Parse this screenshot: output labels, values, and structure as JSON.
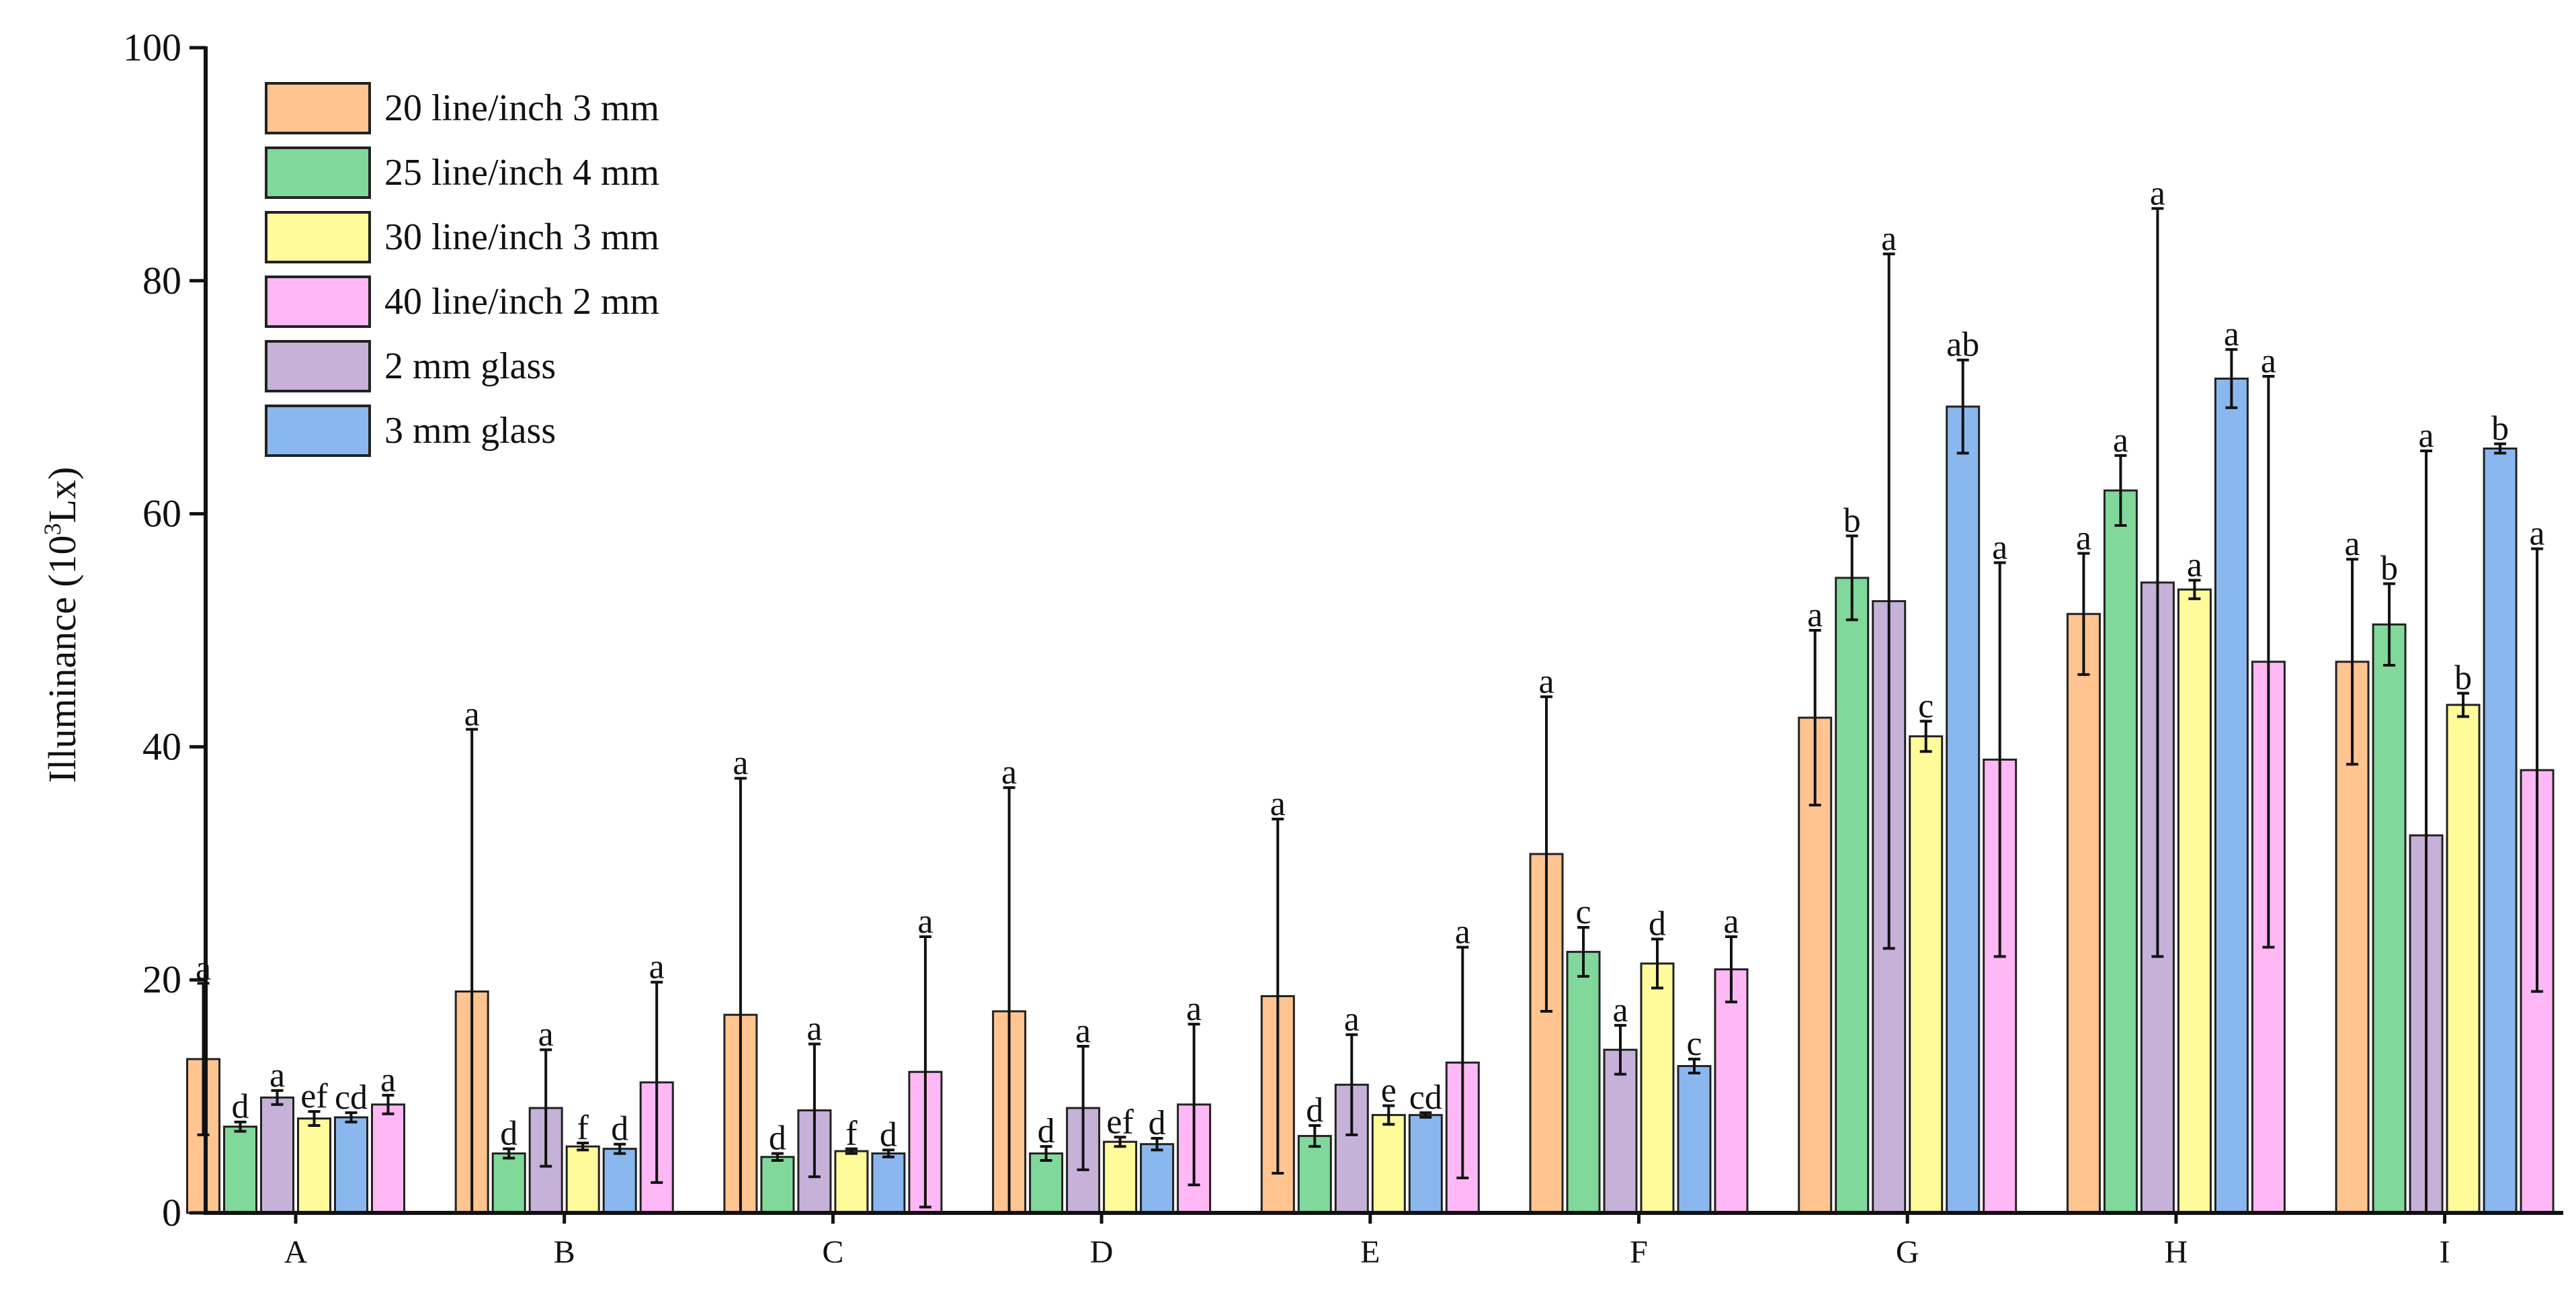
{
  "chart_data": {
    "type": "bar",
    "ylabel": "Illuminance (10",
    "ylabel_sup": "3",
    "ylabel_end": "Lx)",
    "ylim": [
      0,
      100
    ],
    "yticks": [
      0,
      20,
      40,
      60,
      80,
      100
    ],
    "grid": false,
    "legend_placement": "top-left",
    "categories": [
      "A",
      "B",
      "C",
      "D",
      "E",
      "F",
      "G",
      "H",
      "I"
    ],
    "legend": [
      {
        "name": "20 line/inch 3 mm",
        "color": "#FFC48F"
      },
      {
        "name": "25 line/inch 4 mm",
        "color": "#80D99A"
      },
      {
        "name": "30 line/inch 3 mm",
        "color": "#FFFA9A"
      },
      {
        "name": "40 line/inch 2 mm",
        "color": "#FFB8F5"
      },
      {
        "name": "2 mm glass",
        "color": "#C6B2D8"
      },
      {
        "name": "3 mm glass",
        "color": "#8AB8EE"
      }
    ],
    "bar_order": [
      "20 line/inch 3 mm",
      "25 line/inch 4 mm",
      "2 mm glass",
      "30 line/inch 3 mm",
      "3 mm glass",
      "40 line/inch 2 mm"
    ],
    "series": [
      {
        "name": "20 line/inch 3 mm",
        "color": "#FFC48F",
        "values": [
          13.2,
          19.0,
          17.0,
          17.3,
          18.6,
          30.8,
          42.5,
          51.4,
          47.3
        ],
        "errors": [
          6.5,
          22.5,
          20.3,
          19.2,
          15.2,
          13.5,
          7.5,
          5.2,
          8.8
        ],
        "letters": [
          "a",
          "a",
          "a",
          "a",
          "a",
          "a",
          "a",
          "a",
          "a"
        ]
      },
      {
        "name": "25 line/inch 4 mm",
        "color": "#80D99A",
        "values": [
          7.4,
          5.1,
          4.8,
          5.1,
          6.6,
          22.4,
          54.5,
          62.0,
          50.5
        ],
        "errors": [
          0.4,
          0.4,
          0.3,
          0.6,
          0.9,
          2.1,
          3.6,
          3.0,
          3.5
        ],
        "letters": [
          "d",
          "d",
          "d",
          "d",
          "d",
          "c",
          "b",
          "a",
          "b"
        ]
      },
      {
        "name": "2 mm glass",
        "color": "#C6B2D8",
        "values": [
          9.9,
          9.0,
          8.8,
          9.0,
          11.0,
          14.0,
          52.5,
          54.1,
          32.4
        ],
        "errors": [
          0.6,
          5.0,
          5.7,
          5.3,
          4.3,
          2.1,
          29.8,
          32.1,
          33.0
        ],
        "letters": [
          "a",
          "a",
          "a",
          "a",
          "a",
          "a",
          "a",
          "a",
          "a"
        ]
      },
      {
        "name": "30 line/inch 3 mm",
        "color": "#FFFA9A",
        "values": [
          8.1,
          5.7,
          5.3,
          6.1,
          8.4,
          21.4,
          40.9,
          53.5,
          43.6
        ],
        "errors": [
          0.6,
          0.3,
          0.2,
          0.4,
          0.8,
          2.1,
          1.3,
          0.8,
          1.0
        ],
        "letters": [
          "ef",
          "f",
          "f",
          "ef",
          "e",
          "d",
          "c",
          "a",
          "b"
        ]
      },
      {
        "name": "3 mm glass",
        "color": "#8AB8EE",
        "values": [
          8.2,
          5.5,
          5.1,
          5.9,
          8.4,
          12.6,
          69.2,
          71.6,
          65.6
        ],
        "errors": [
          0.4,
          0.4,
          0.3,
          0.5,
          0.2,
          0.6,
          4.0,
          2.5,
          0.4
        ],
        "letters": [
          "cd",
          "d",
          "d",
          "d",
          "cd",
          "c",
          "ab",
          "a",
          "b"
        ]
      },
      {
        "name": "40 line/inch 2 mm",
        "color": "#FFB8F5",
        "values": [
          9.3,
          11.2,
          12.1,
          9.3,
          12.9,
          20.9,
          38.9,
          47.3,
          38.0
        ],
        "errors": [
          0.8,
          8.6,
          11.6,
          6.9,
          9.9,
          2.8,
          16.9,
          24.5,
          19.0
        ],
        "letters": [
          "a",
          "a",
          "a",
          "a",
          "a",
          "a",
          "a",
          "a",
          "a"
        ]
      }
    ]
  }
}
